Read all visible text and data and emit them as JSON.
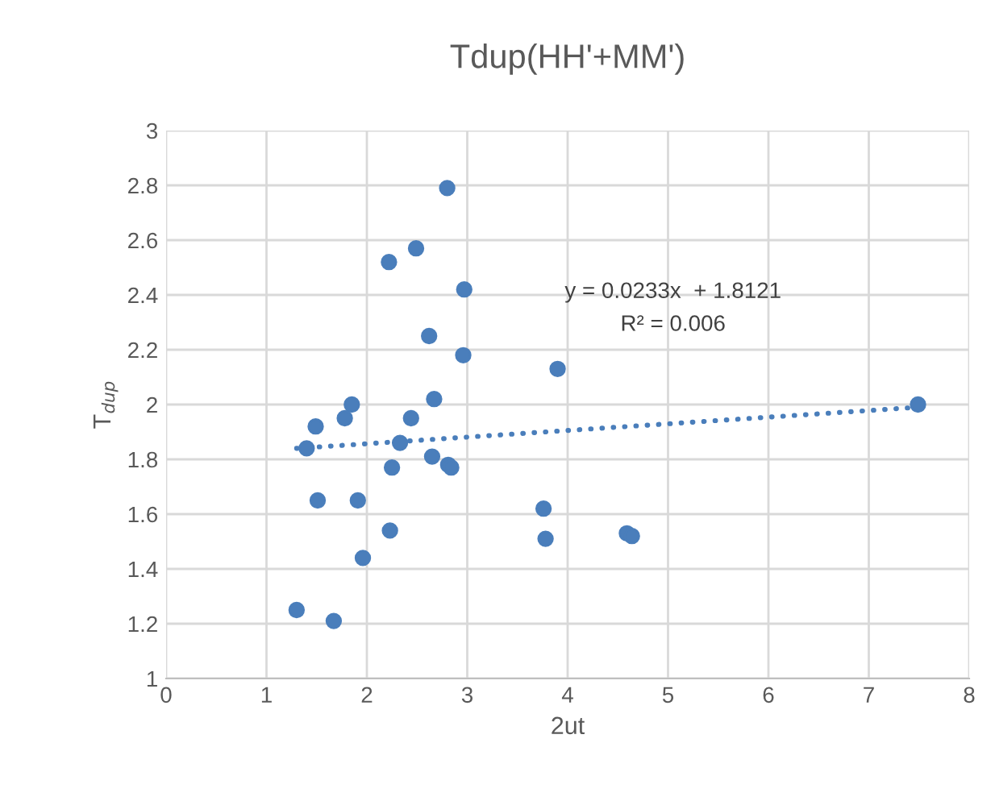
{
  "chart_data": {
    "type": "scatter",
    "title": "Tdup(HH'+MM')",
    "xlabel": "2ut",
    "ylabel": "T$_{dup}$",
    "series": [
      {
        "color": "#4a7ebb",
        "marker": "circle",
        "x": [
          2.8,
          2.49,
          2.22,
          2.97,
          2.62,
          2.96,
          3.9,
          2.67,
          1.85,
          1.78,
          2.44,
          1.49,
          1.4,
          2.33,
          2.65,
          2.81,
          2.84,
          2.25,
          1.51,
          1.91,
          3.76,
          2.23,
          3.78,
          4.59,
          4.64,
          1.96,
          1.3,
          1.67,
          7.49
        ],
        "values": [
          2.79,
          2.57,
          2.52,
          2.42,
          2.25,
          2.18,
          2.13,
          2.02,
          2.0,
          1.95,
          1.95,
          1.92,
          1.84,
          1.86,
          1.81,
          1.78,
          1.77,
          1.77,
          1.65,
          1.65,
          1.62,
          1.54,
          1.51,
          1.53,
          1.52,
          1.44,
          1.25,
          1.21,
          2.0
        ]
      },
      {
        "type": "line",
        "color": "#4a7ebb",
        "line_style": "dotted",
        "x": [
          1.3,
          7.49
        ],
        "values": [
          1.84,
          1.99
        ]
      }
    ],
    "annotations": [
      "y = 0.0233x  + 1.8121",
      "R² = 0.006"
    ],
    "xlim": [
      0,
      8
    ],
    "xticks": [
      0,
      1,
      2,
      3,
      4,
      5,
      6,
      7,
      8
    ],
    "ylim": [
      1,
      3
    ],
    "yticks": [
      1,
      1.2,
      1.4,
      1.6,
      1.8,
      2,
      2.2,
      2.4,
      2.6,
      2.8,
      3
    ],
    "grid": true,
    "legend": false
  }
}
